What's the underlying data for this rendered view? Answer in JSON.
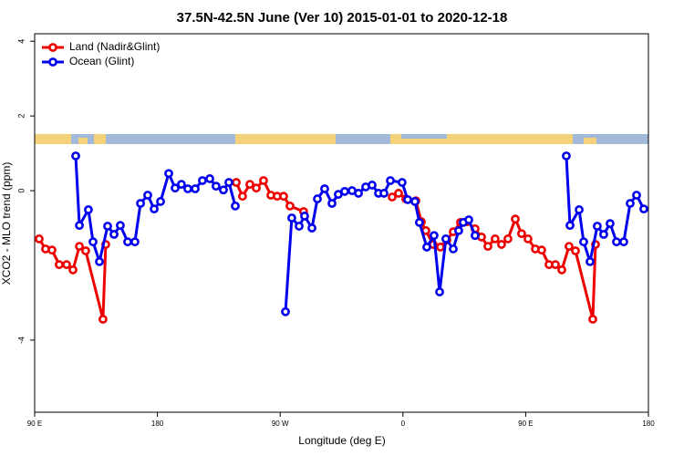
{
  "chart_data": {
    "type": "line",
    "title": "37.5N-42.5N June (Ver 10)   2015-01-01 to 2020-12-18",
    "x_label": "Longitude (deg E)",
    "y_label": "XCO2 - MLO trend (ppm)",
    "xlim": [
      90,
      540
    ],
    "ylim": [
      -5.93,
      4.2
    ],
    "xticks": [
      {
        "value": 90,
        "label": "90 E"
      },
      {
        "value": 180,
        "label": "180"
      },
      {
        "value": 270,
        "label": "90 W"
      },
      {
        "value": 360,
        "label": "0"
      },
      {
        "value": 450,
        "label": "90 E"
      },
      {
        "value": 540,
        "label": "180"
      }
    ],
    "yticks": [
      -4,
      0,
      2,
      4
    ],
    "legend": "top-left",
    "series": [
      {
        "name": "Land (Nadir&Glint)",
        "color": "#ee0000",
        "x": [
          93.3,
          98.0,
          102.7,
          108.0,
          113.4,
          118.1,
          122.8,
          127.4,
          140.1,
          142.1,
          null,
          237.8,
          242.4,
          247.8,
          252.5,
          257.8,
          263.2,
          267.8,
          272.5,
          277.2,
          287.2,
          null,
          352.1,
          356.8,
          362.1,
          369.5,
          373.5,
          376.8,
          382.2,
          387.5,
          392.2,
          396.9,
          402.2,
          406.9,
          412.9,
          417.6,
          422.3,
          427.6,
          432.3,
          437.0,
          442.4,
          447.0,
          451.7,
          457.1,
          461.7,
          467.1,
          471.8,
          476.5,
          481.8,
          486.5,
          499.2,
          501.2
        ],
        "values": [
          -1.29,
          -1.56,
          -1.59,
          -1.98,
          -1.98,
          -2.12,
          -1.49,
          -1.61,
          -3.44,
          -1.44,
          null,
          0.22,
          -0.15,
          0.17,
          0.07,
          0.27,
          -0.12,
          -0.15,
          -0.15,
          -0.41,
          -0.56,
          null,
          -0.17,
          -0.07,
          -0.22,
          -0.27,
          -0.83,
          -1.07,
          -1.44,
          -1.51,
          -1.32,
          -1.1,
          -0.85,
          -0.83,
          -1.02,
          -1.24,
          -1.49,
          -1.29,
          -1.44,
          -1.29,
          -0.76,
          -1.15,
          -1.29,
          -1.56,
          -1.59,
          -1.98,
          -1.98,
          -2.12,
          -1.49,
          -1.61,
          -3.44,
          -1.44
        ]
      },
      {
        "name": "Ocean (Glint)",
        "color": "#0000ee",
        "x": [
          120.1,
          122.8,
          129.4,
          132.8,
          137.5,
          143.5,
          148.2,
          152.8,
          158.2,
          163.5,
          167.6,
          172.9,
          177.6,
          182.3,
          188.3,
          193.0,
          197.6,
          202.3,
          207.7,
          213.0,
          218.4,
          223.0,
          228.4,
          232.4,
          237.1,
          null,
          273.9,
          278.5,
          283.9,
          287.9,
          293.3,
          297.3,
          302.6,
          308.0,
          312.6,
          317.3,
          322.7,
          327.4,
          332.7,
          337.4,
          342.1,
          346.1,
          350.8,
          359.4,
          363.5,
          368.8,
          372.1,
          377.5,
          382.8,
          386.9,
          391.5,
          396.9,
          400.9,
          404.2,
          408.3,
          412.9,
          null,
          479.8,
          482.5,
          489.2,
          492.5,
          497.2,
          502.5,
          507.2,
          511.9,
          516.6,
          521.9,
          526.6,
          531.3,
          536.6
        ],
        "values": [
          0.93,
          -0.93,
          -0.51,
          -1.37,
          -1.9,
          -0.95,
          -1.17,
          -0.93,
          -1.37,
          -1.37,
          -0.34,
          -0.12,
          -0.49,
          -0.29,
          0.46,
          0.07,
          0.17,
          0.05,
          0.05,
          0.27,
          0.32,
          0.12,
          0.02,
          0.22,
          -0.41,
          null,
          -3.24,
          -0.73,
          -0.95,
          -0.68,
          -1.0,
          -0.22,
          0.05,
          -0.34,
          -0.1,
          -0.02,
          0.0,
          -0.07,
          0.1,
          0.15,
          -0.07,
          -0.07,
          0.27,
          0.22,
          -0.24,
          -0.29,
          -0.85,
          -1.51,
          -1.2,
          -2.71,
          -1.29,
          -1.56,
          -1.07,
          -0.85,
          -0.78,
          -1.2,
          null,
          0.93,
          -0.93,
          -0.51,
          -1.37,
          -1.9,
          -0.95,
          -1.17,
          -0.88,
          -1.37,
          -1.37,
          -0.34,
          -0.12,
          -0.49
        ]
      }
    ]
  }
}
